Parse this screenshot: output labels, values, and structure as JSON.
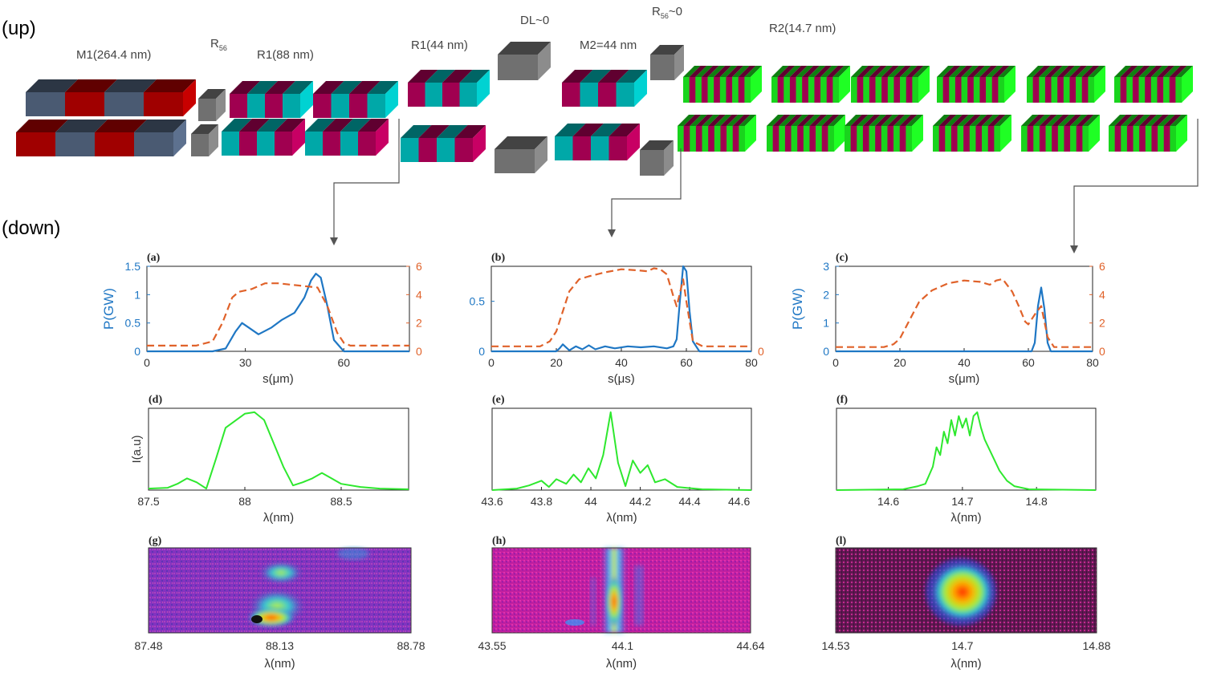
{
  "labels": {
    "up": "(up)",
    "down": "(down)",
    "m1": "M1(264.4 nm)",
    "r56": "R",
    "r56_sub": "56",
    "r1_88": "R1(88 nm)",
    "r1_44": "R1(44 nm)",
    "dl": "DL~0",
    "m2": "M2=44 nm",
    "r56b": "R",
    "r56b_sub": "56",
    "r56b_tail": "~0",
    "r2": "R2(14.7 nm)"
  },
  "colors": {
    "slate": "#4a5a72",
    "red": "#a00000",
    "teal": "#00a8a8",
    "magenta": "#a00050",
    "green": "#19d41d",
    "gray": "#707070",
    "blue_curve": "#1f77c4",
    "orange_curve": "#e0622a",
    "spectrum": "#2ee82e"
  },
  "chart_data": [
    {
      "id": "a",
      "panel_label": "(a)",
      "type": "line",
      "xlabel": "s(μm)",
      "ylabel": "P(GW)",
      "xlim": [
        0,
        80
      ],
      "xticks": [
        "0",
        "30",
        "60"
      ],
      "xtick_vals": [
        0,
        30,
        60
      ],
      "ylim_left": [
        0,
        1.5
      ],
      "yticks_left": [
        "0",
        "0.5",
        "1",
        "1.5"
      ],
      "ytick_left_vals": [
        0,
        0.5,
        1,
        1.5
      ],
      "ylim_right": [
        0,
        6
      ],
      "yticks_right": [
        "0",
        "2",
        "4",
        "6"
      ],
      "ytick_right_vals": [
        0,
        2,
        4,
        6
      ],
      "series": [
        {
          "name": "power",
          "axis": "left",
          "style": "solid",
          "x": [
            0,
            20,
            24,
            27,
            29,
            31,
            34,
            38,
            41,
            45,
            48,
            50,
            51.5,
            53,
            55,
            57,
            60,
            80
          ],
          "y": [
            0,
            0,
            0.05,
            0.35,
            0.5,
            0.42,
            0.3,
            0.42,
            0.55,
            0.68,
            0.95,
            1.25,
            1.37,
            1.3,
            0.8,
            0.2,
            0,
            0
          ]
        },
        {
          "name": "envelope",
          "axis": "right",
          "style": "dashed",
          "x": [
            0,
            15,
            20,
            23,
            26,
            28,
            32,
            36,
            40,
            44,
            48,
            52,
            55,
            58,
            60,
            62,
            65,
            80
          ],
          "y": [
            0.4,
            0.4,
            0.7,
            2.0,
            3.8,
            4.2,
            4.4,
            4.8,
            4.8,
            4.7,
            4.6,
            4.5,
            3.2,
            1.3,
            0.6,
            0.4,
            0.4,
            0.4
          ]
        }
      ]
    },
    {
      "id": "b",
      "panel_label": "(b)",
      "type": "line",
      "xlabel": "s(μs)",
      "ylabel": "",
      "xlim": [
        0,
        80
      ],
      "xticks": [
        "0",
        "20",
        "40",
        "60",
        "80"
      ],
      "xtick_vals": [
        0,
        20,
        40,
        60,
        80
      ],
      "ylim_left": [
        0,
        0.85
      ],
      "yticks_left": [
        "0",
        "0.5"
      ],
      "ytick_left_vals": [
        0,
        0.5
      ],
      "ylim_right": [
        0,
        0.85
      ],
      "yticks_right": [
        "0"
      ],
      "ytick_right_vals": [
        0
      ],
      "series": [
        {
          "name": "power",
          "axis": "left",
          "style": "solid",
          "x": [
            0,
            20,
            21,
            22,
            24,
            26,
            28,
            30,
            32,
            35,
            38,
            42,
            46,
            50,
            54,
            56,
            57,
            58,
            59,
            60,
            61,
            62,
            64,
            80
          ],
          "y": [
            0,
            0,
            0.03,
            0.07,
            0.01,
            0.05,
            0.02,
            0.06,
            0.02,
            0.05,
            0.03,
            0.05,
            0.04,
            0.05,
            0.03,
            0.05,
            0.12,
            0.5,
            0.85,
            0.8,
            0.4,
            0.1,
            0,
            0
          ]
        },
        {
          "name": "envelope",
          "axis": "right",
          "style": "dashed",
          "x": [
            0,
            15,
            18,
            20,
            22,
            24,
            27,
            30,
            35,
            40,
            45,
            48,
            50,
            52,
            54,
            56,
            57,
            58,
            59,
            60,
            61,
            62,
            65,
            80
          ],
          "y": [
            0.05,
            0.05,
            0.1,
            0.2,
            0.4,
            0.6,
            0.72,
            0.75,
            0.79,
            0.82,
            0.81,
            0.8,
            0.83,
            0.82,
            0.77,
            0.55,
            0.45,
            0.58,
            0.72,
            0.5,
            0.3,
            0.1,
            0.05,
            0.05
          ]
        }
      ]
    },
    {
      "id": "c",
      "panel_label": "(c)",
      "type": "line",
      "xlabel": "s(μm)",
      "ylabel": "P(GW)",
      "xlim": [
        0,
        80
      ],
      "xticks": [
        "0",
        "20",
        "40",
        "60",
        "80"
      ],
      "xtick_vals": [
        0,
        20,
        40,
        60,
        80
      ],
      "ylim_left": [
        0,
        3
      ],
      "yticks_left": [
        "0",
        "1",
        "2",
        "3"
      ],
      "ytick_left_vals": [
        0,
        1,
        2,
        3
      ],
      "ylim_right": [
        0,
        6
      ],
      "yticks_right": [
        "0",
        "2",
        "4",
        "6"
      ],
      "ytick_right_vals": [
        0,
        2,
        4,
        6
      ],
      "series": [
        {
          "name": "power",
          "axis": "left",
          "style": "solid",
          "x": [
            0,
            61,
            62,
            63,
            64,
            65,
            66,
            67,
            80
          ],
          "y": [
            0,
            0,
            0.3,
            1.6,
            2.25,
            1.5,
            0.3,
            0,
            0
          ]
        },
        {
          "name": "envelope",
          "axis": "right",
          "style": "dashed",
          "x": [
            0,
            15,
            18,
            20,
            23,
            26,
            30,
            35,
            40,
            45,
            48,
            50,
            52,
            55,
            57,
            59,
            60,
            62,
            64,
            66,
            68,
            80
          ],
          "y": [
            0.3,
            0.3,
            0.5,
            0.9,
            2.2,
            3.5,
            4.3,
            4.8,
            5.0,
            4.9,
            4.7,
            5.0,
            5.1,
            4.2,
            3.2,
            2.1,
            1.9,
            2.6,
            3.2,
            1.0,
            0.3,
            0.3
          ]
        }
      ]
    },
    {
      "id": "d",
      "panel_label": "(d)",
      "type": "line",
      "xlabel": "λ(nm)",
      "ylabel": "I(a.u)",
      "xlim": [
        87.5,
        88.85
      ],
      "xticks": [
        "87.5",
        "88",
        "88.5"
      ],
      "xtick_vals": [
        87.5,
        88,
        88.5
      ],
      "series": [
        {
          "name": "spectrum",
          "x": [
            87.5,
            87.6,
            87.65,
            87.7,
            87.75,
            87.8,
            87.85,
            87.9,
            88.0,
            88.05,
            88.1,
            88.15,
            88.2,
            88.25,
            88.3,
            88.35,
            88.4,
            88.45,
            88.5,
            88.6,
            88.7,
            88.85
          ],
          "y": [
            0.02,
            0.03,
            0.08,
            0.15,
            0.1,
            0.02,
            0.4,
            0.8,
            0.98,
            1.0,
            0.9,
            0.6,
            0.3,
            0.06,
            0.1,
            0.15,
            0.22,
            0.15,
            0.08,
            0.04,
            0.02,
            0.01
          ]
        }
      ]
    },
    {
      "id": "e",
      "panel_label": "(e)",
      "type": "line",
      "xlabel": "λ(nm)",
      "ylabel": "",
      "xlim": [
        43.6,
        44.65
      ],
      "xticks": [
        "43.6",
        "43.8",
        "44",
        "44.2",
        "44.4",
        "44.6"
      ],
      "xtick_vals": [
        43.6,
        43.8,
        44,
        44.2,
        44.4,
        44.6
      ],
      "series": [
        {
          "name": "spectrum",
          "x": [
            43.6,
            43.7,
            43.75,
            43.8,
            43.83,
            43.86,
            43.9,
            43.93,
            43.96,
            43.99,
            44.02,
            44.05,
            44.08,
            44.11,
            44.14,
            44.17,
            44.2,
            44.23,
            44.26,
            44.3,
            44.35,
            44.45,
            44.65
          ],
          "y": [
            0,
            0.02,
            0.06,
            0.12,
            0.04,
            0.14,
            0.08,
            0.2,
            0.1,
            0.28,
            0.15,
            0.45,
            1.0,
            0.35,
            0.05,
            0.38,
            0.22,
            0.32,
            0.1,
            0.14,
            0.04,
            0.01,
            0
          ]
        }
      ]
    },
    {
      "id": "f",
      "panel_label": "(f)",
      "type": "line",
      "xlabel": "λ(nm)",
      "ylabel": "",
      "xlim": [
        14.53,
        14.88
      ],
      "xticks": [
        "14.6",
        "14.7",
        "14.8"
      ],
      "xtick_vals": [
        14.6,
        14.7,
        14.8
      ],
      "series": [
        {
          "name": "spectrum",
          "x": [
            14.53,
            14.62,
            14.64,
            14.65,
            14.66,
            14.665,
            14.67,
            14.675,
            14.68,
            14.685,
            14.69,
            14.695,
            14.7,
            14.705,
            14.71,
            14.715,
            14.72,
            14.725,
            14.73,
            14.74,
            14.75,
            14.76,
            14.77,
            14.79,
            14.88
          ],
          "y": [
            0,
            0.01,
            0.05,
            0.08,
            0.3,
            0.55,
            0.45,
            0.75,
            0.6,
            0.9,
            0.7,
            0.95,
            0.8,
            0.92,
            0.7,
            0.95,
            1.0,
            0.8,
            0.65,
            0.45,
            0.25,
            0.12,
            0.05,
            0.01,
            0
          ]
        }
      ]
    }
  ],
  "images": [
    {
      "id": "g",
      "panel_label": "(g)",
      "xlabel": "λ(nm)",
      "ticks": [
        "87.48",
        "88.13",
        "88.78"
      ],
      "tick_vals": [
        87.48,
        88.13,
        88.78
      ],
      "lambda_range": [
        87.48,
        88.78
      ],
      "peak_lambda": 88.13
    },
    {
      "id": "h",
      "panel_label": "(h)",
      "xlabel": "λ(nm)",
      "ticks": [
        "43.55",
        "44.1",
        "44.64"
      ],
      "tick_vals": [
        43.55,
        44.1,
        44.64
      ],
      "lambda_range": [
        43.55,
        44.64
      ],
      "peak_lambda": 44.1
    },
    {
      "id": "i",
      "panel_label": "(l)",
      "xlabel": "λ(nm)",
      "ticks": [
        "14.53",
        "14.7",
        "14.88"
      ],
      "tick_vals": [
        14.53,
        14.7,
        14.88
      ],
      "lambda_range": [
        14.53,
        14.88
      ],
      "peak_lambda": 14.7
    }
  ]
}
